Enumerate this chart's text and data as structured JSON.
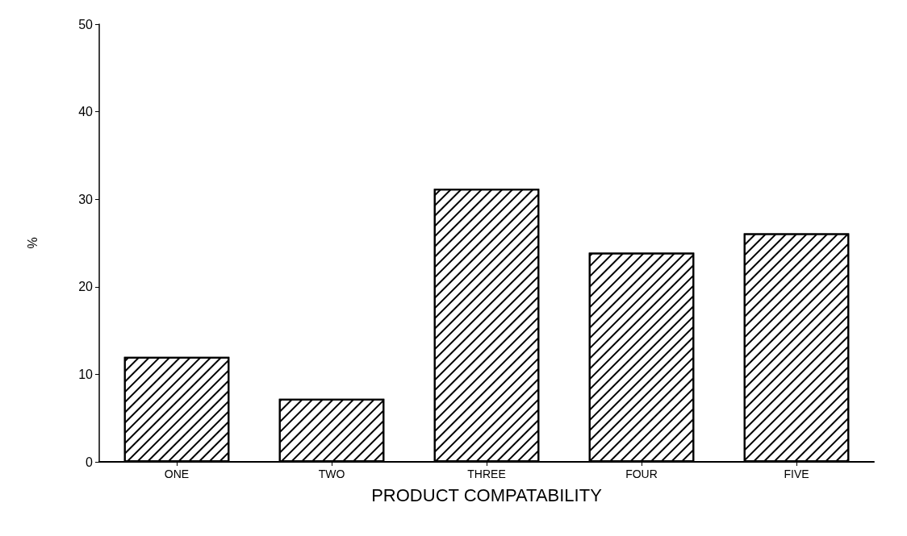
{
  "chart_data": {
    "type": "bar",
    "xlabel": "PRODUCT COMPATABILITY",
    "ylabel": "%",
    "categories": [
      "ONE",
      "TWO",
      "THREE",
      "FOUR",
      "FIVE"
    ],
    "values": [
      12,
      7.2,
      31.2,
      23.9,
      26.1
    ],
    "color": "#000000",
    "ylim": [
      0,
      50
    ],
    "yticks": [
      0,
      10,
      20,
      30,
      40,
      50
    ],
    "grid": false
  }
}
